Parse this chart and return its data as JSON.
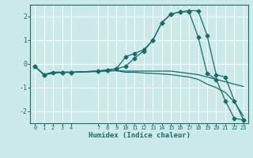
{
  "xlabel": "Humidex (Indice chaleur)",
  "xlim": [
    -0.5,
    23.5
  ],
  "ylim": [
    -2.5,
    2.5
  ],
  "background_color": "#cdeaea",
  "grid_color": "#ffffff",
  "line_color": "#1a6b6b",
  "xticks": [
    0,
    1,
    2,
    3,
    4,
    7,
    8,
    9,
    10,
    11,
    12,
    13,
    14,
    15,
    16,
    17,
    18,
    19,
    20,
    21,
    22,
    23
  ],
  "yticks": [
    -2,
    -1,
    0,
    1,
    2
  ],
  "lines": [
    {
      "x": [
        0,
        1,
        3,
        4,
        7,
        8,
        9,
        10,
        11,
        12,
        13,
        14,
        15,
        16,
        17,
        18,
        19,
        20,
        21,
        22,
        23
      ],
      "y": [
        -0.1,
        -0.45,
        -0.35,
        -0.35,
        -0.3,
        -0.25,
        -0.2,
        0.3,
        0.45,
        0.6,
        1.0,
        1.75,
        2.1,
        2.2,
        2.25,
        2.25,
        1.2,
        -0.45,
        -0.55,
        -1.55,
        -2.35
      ],
      "marker": true,
      "has_gap": false
    },
    {
      "x": [
        0,
        1,
        2,
        3,
        4,
        7,
        8,
        9,
        10,
        11,
        12,
        13,
        14,
        15,
        16,
        17,
        18,
        19,
        20,
        21,
        22,
        23
      ],
      "y": [
        -0.1,
        -0.45,
        -0.35,
        -0.35,
        -0.35,
        -0.3,
        -0.25,
        -0.2,
        -0.1,
        0.25,
        0.55,
        1.0,
        1.75,
        2.1,
        2.2,
        2.2,
        1.15,
        -0.4,
        -0.65,
        -1.55,
        -2.3,
        -2.35
      ],
      "marker": true,
      "has_gap": false
    },
    {
      "x": [
        0,
        1,
        2,
        3,
        4,
        7,
        8,
        9,
        10,
        11,
        12,
        13,
        14,
        15,
        16,
        17,
        18,
        19,
        20,
        21,
        22,
        23
      ],
      "y": [
        -0.1,
        -0.45,
        -0.35,
        -0.35,
        -0.35,
        -0.3,
        -0.28,
        -0.28,
        -0.3,
        -0.3,
        -0.3,
        -0.3,
        -0.3,
        -0.3,
        -0.35,
        -0.4,
        -0.45,
        -0.55,
        -0.65,
        -0.75,
        -0.85,
        -0.95
      ],
      "marker": false,
      "has_gap": false
    },
    {
      "x": [
        0,
        1,
        2,
        3,
        4,
        7,
        8,
        9,
        10,
        11,
        12,
        13,
        14,
        15,
        16,
        17,
        18,
        19,
        20,
        21,
        22,
        23
      ],
      "y": [
        -0.1,
        -0.45,
        -0.35,
        -0.35,
        -0.35,
        -0.32,
        -0.3,
        -0.28,
        -0.35,
        -0.35,
        -0.38,
        -0.4,
        -0.42,
        -0.45,
        -0.5,
        -0.55,
        -0.65,
        -0.85,
        -1.0,
        -1.2,
        -1.6,
        -2.2
      ],
      "marker": false,
      "has_gap": false
    }
  ]
}
